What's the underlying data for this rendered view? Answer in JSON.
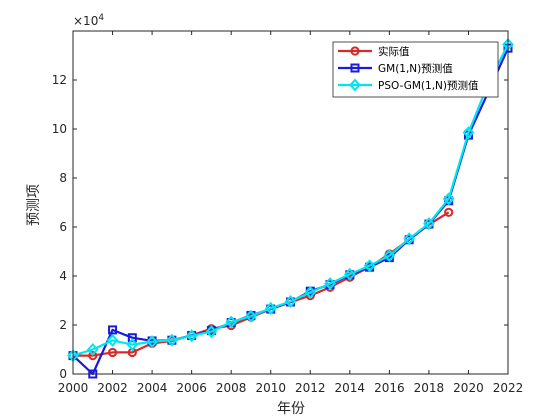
{
  "chart_data": {
    "type": "line",
    "xlabel": "年份",
    "ylabel": "预测项",
    "exponent_label": "×10",
    "exponent_power": "4",
    "xlim": [
      2000,
      2022
    ],
    "ylim": [
      0,
      140000
    ],
    "x_ticks": [
      2000,
      2002,
      2004,
      2006,
      2008,
      2010,
      2012,
      2014,
      2016,
      2018,
      2020,
      2022
    ],
    "y_ticks": [
      0,
      20000,
      40000,
      60000,
      80000,
      100000,
      120000
    ],
    "y_tick_labels": [
      "0",
      "2",
      "4",
      "6",
      "8",
      "10",
      "12"
    ],
    "grid": false,
    "legend_position": "top-right",
    "series": [
      {
        "name": "实际值",
        "color": "#d42a2a",
        "marker": "circle",
        "x": [
          2000,
          2001,
          2002,
          2003,
          2004,
          2005,
          2006,
          2007,
          2008,
          2009,
          2010,
          2011,
          2012,
          2013,
          2014,
          2015,
          2016,
          2017,
          2018,
          2019
        ],
        "y": [
          7500,
          7500,
          8800,
          8800,
          12500,
          13500,
          15800,
          18500,
          19800,
          23200,
          26500,
          29300,
          32000,
          35400,
          39500,
          43700,
          49000,
          54800,
          61000,
          66000
        ]
      },
      {
        "name": "GM(1,N)预测值",
        "color": "#1a1adb",
        "marker": "square",
        "x": [
          2000,
          2001,
          2002,
          2003,
          2004,
          2005,
          2006,
          2007,
          2008,
          2009,
          2010,
          2011,
          2012,
          2013,
          2014,
          2015,
          2016,
          2017,
          2018,
          2019,
          2020,
          2021,
          2022
        ],
        "y": [
          7500,
          0,
          18000,
          14800,
          13500,
          13800,
          15700,
          17700,
          21000,
          23900,
          26500,
          29400,
          33800,
          36500,
          40500,
          43600,
          47500,
          54800,
          61200,
          70700,
          97500,
          115000,
          133000
        ]
      },
      {
        "name": "PSO-GM(1,N)预测值",
        "color": "#00e5ee",
        "marker": "diamond",
        "x": [
          2000,
          2001,
          2002,
          2003,
          2004,
          2005,
          2006,
          2007,
          2008,
          2009,
          2010,
          2011,
          2012,
          2013,
          2014,
          2015,
          2016,
          2017,
          2018,
          2019,
          2020,
          2021,
          2022
        ],
        "y": [
          7500,
          10000,
          13700,
          12000,
          13200,
          13800,
          15600,
          17300,
          21200,
          23600,
          26800,
          29600,
          33300,
          36900,
          40700,
          44200,
          48300,
          55200,
          61400,
          71500,
          98500,
          118500,
          134500
        ]
      }
    ]
  }
}
